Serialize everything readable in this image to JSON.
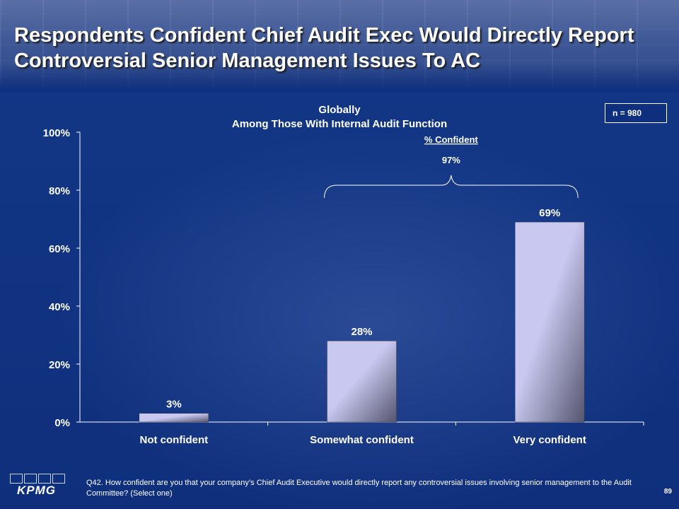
{
  "slide": {
    "title": "Respondents Confident Chief Audit Exec Would Directly Report Controversial Senior Management Issues To AC",
    "sample_size": "n = 980",
    "footnote": "Q42. How confident are you that your company’s Chief Audit Executive would directly report any controversial issues involving senior management to the Audit Committee? (Select one)",
    "page_number": "89",
    "logo_text": "KPMG"
  },
  "colors": {
    "background": "#0e2f7e",
    "bar_light": "#c8c8f0",
    "bar_dark": "#55556e",
    "text": "#ffffff"
  },
  "chart_data": {
    "type": "bar",
    "title": "Globally",
    "subtitle": "Among Those With Internal Audit Function",
    "categories": [
      "Not confident",
      "Somewhat confident",
      "Very confident"
    ],
    "values": [
      3,
      28,
      69
    ],
    "value_labels": [
      "3%",
      "28%",
      "69%"
    ],
    "xlabel": "",
    "ylabel": "",
    "ylim": [
      0,
      100
    ],
    "yticks": [
      0,
      20,
      40,
      60,
      80,
      100
    ],
    "ytick_labels": [
      "0%",
      "20%",
      "40%",
      "60%",
      "80%",
      "100%"
    ],
    "grid": false,
    "legend": "none",
    "annotation": {
      "label": "% Confident",
      "value": "97%",
      "spans": [
        "Somewhat confident",
        "Very confident"
      ]
    }
  }
}
